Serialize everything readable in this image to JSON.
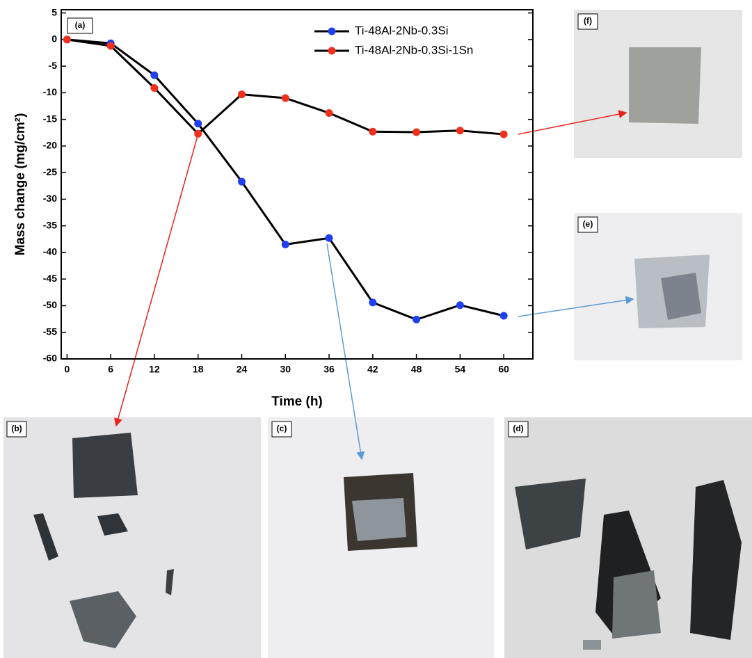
{
  "chart_data": {
    "type": "line",
    "panel_label": "(a)",
    "xlabel": "Time (h)",
    "ylabel": "Mass change (mg/cm²)",
    "x": [
      0,
      6,
      12,
      18,
      24,
      30,
      36,
      42,
      48,
      54,
      60
    ],
    "series": [
      {
        "name": "Ti-48Al-2Nb-0.3Si",
        "color": "#1f3ff0",
        "values": [
          0,
          -0.7,
          -6.7,
          -15.8,
          -26.7,
          -38.5,
          -37.3,
          -49.4,
          -52.6,
          -49.9,
          -51.9
        ]
      },
      {
        "name": "Ti-48Al-2Nb-0.3Si-1Sn",
        "color": "#f0301c",
        "values": [
          0,
          -1.2,
          -9.1,
          -17.7,
          -10.3,
          -11.0,
          -13.8,
          -17.3,
          -17.4,
          -17.1,
          -17.8
        ]
      }
    ],
    "xlim": [
      -0.8,
      64
    ],
    "ylim": [
      -60,
      5.6
    ],
    "xticks": [
      0,
      6,
      12,
      18,
      24,
      30,
      36,
      42,
      48,
      54,
      60
    ],
    "yticks": [
      5,
      0,
      -5,
      -10,
      -15,
      -20,
      -25,
      -30,
      -35,
      -40,
      -45,
      -50,
      -55,
      -60
    ],
    "legend": "upper right",
    "grid": false
  },
  "photos": [
    "(b)",
    "(c)",
    "(d)",
    "(e)",
    "(f)"
  ]
}
